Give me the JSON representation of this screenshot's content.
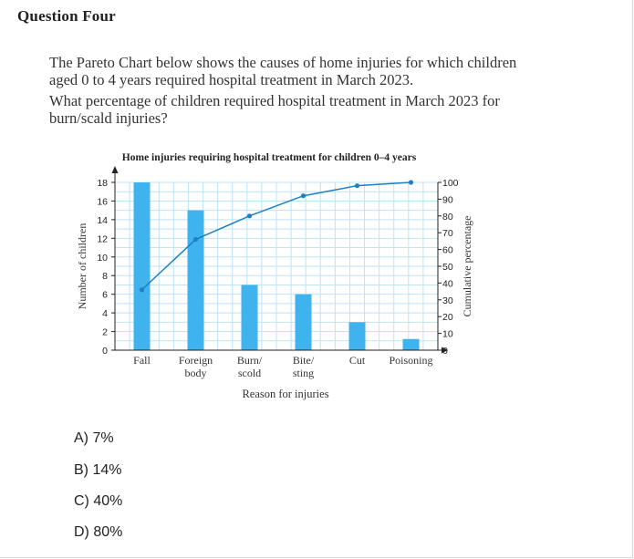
{
  "question": {
    "title": "Question Four",
    "lines": [
      "The Pareto Chart below shows the causes of home injuries for which children",
      "aged 0 to 4 years required hospital treatment in March 2023.",
      "What percentage of children required hospital treatment in March 2023 for",
      "burn/scald injuries?"
    ]
  },
  "chart_data": {
    "type": "bar",
    "title": "Home injuries requiring hospital treatment for children 0–4 years",
    "xlabel": "Reason for injuries",
    "ylabel": "Number of children",
    "y2label": "Cumulative percentage",
    "categories": [
      [
        "Fall"
      ],
      [
        "Foreign",
        "body"
      ],
      [
        "Burn/",
        "scold"
      ],
      [
        "Bite/",
        "sting"
      ],
      [
        "Cut"
      ],
      [
        "Poisoning"
      ]
    ],
    "values": [
      18,
      15,
      7,
      6,
      3,
      1.2
    ],
    "cumulative": [
      36,
      66,
      80,
      92,
      98,
      100
    ],
    "ylim": [
      0,
      18
    ],
    "yticks": [
      0,
      2,
      4,
      6,
      8,
      10,
      12,
      14,
      16,
      18
    ],
    "y2lim": [
      0,
      100
    ],
    "y2ticks": [
      0,
      10,
      20,
      30,
      40,
      50,
      60,
      70,
      80,
      90,
      100
    ],
    "grid": true,
    "bar_color": "#3fb3ee",
    "line_color": "#1f7fc1",
    "grid_color": "#bfe3f7"
  },
  "options": [
    "A) 7%",
    "B) 14%",
    "C) 40%",
    "D) 80%"
  ]
}
